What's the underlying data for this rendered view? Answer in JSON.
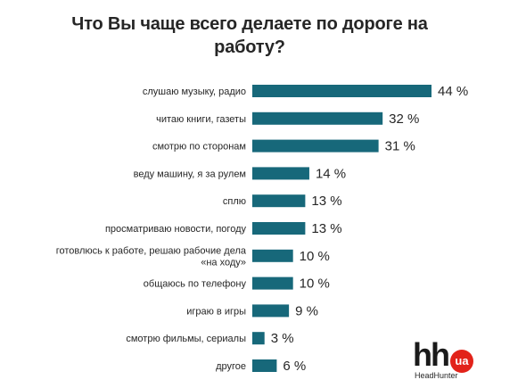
{
  "chart_data": {
    "type": "bar",
    "orientation": "horizontal",
    "title": "Что Вы чаще всего делаете по дороге на работу?",
    "categories": [
      "слушаю музыку, радио",
      "читаю книги, газеты",
      "смотрю по сторонам",
      "веду машину, я за рулем",
      "сплю",
      "просматриваю новости, погоду",
      "готовлюсь к работе, решаю рабочие дела «на ходу»",
      "общаюсь по телефону",
      "играю в игры",
      "смотрю фильмы, сериалы",
      "другое"
    ],
    "values": [
      44,
      32,
      31,
      14,
      13,
      13,
      10,
      10,
      9,
      3,
      6
    ],
    "value_labels": [
      "44 %",
      "32 %",
      "31 %",
      "14 %",
      "13 %",
      "13 %",
      "10 %",
      "10 %",
      "9 %",
      "3 %",
      "6 %"
    ],
    "bar_color": "#17687a",
    "xlim": [
      0,
      44
    ],
    "grid": false,
    "legend": "none"
  },
  "logo": {
    "mark": "hh",
    "badge": "ua",
    "caption": "HeadHunter",
    "badge_color": "#e2231a"
  }
}
